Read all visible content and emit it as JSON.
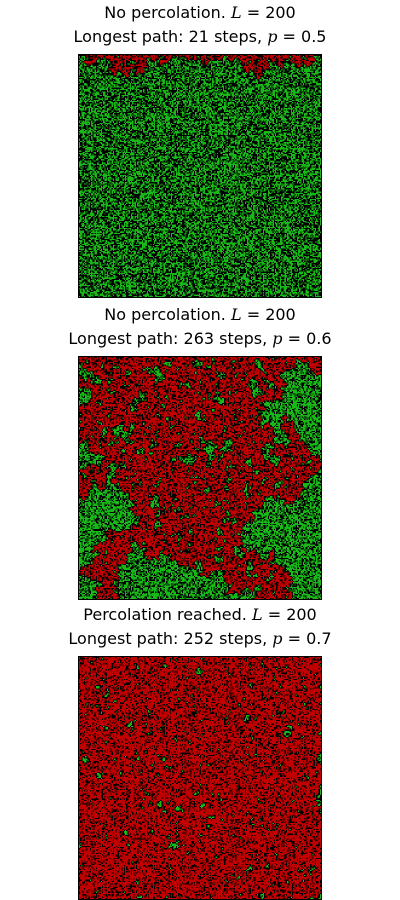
{
  "colors": {
    "open_site": "#18b818",
    "blocked_site": "#000000",
    "percolating_cluster": "#c00000",
    "frame": "#000000",
    "background": "#ffffff"
  },
  "panels": [
    {
      "title_line_1": "No percolation.",
      "size_symbol": "L",
      "size_eq": " = 200",
      "title_line_2": "Longest path: 21 steps,",
      "prob_symbol": "p",
      "prob_eq": " = 0.5",
      "L": 200,
      "p": 0.5,
      "longest_path_steps": 21,
      "percolation_reached": false
    },
    {
      "title_line_1": "No percolation.",
      "size_symbol": "L",
      "size_eq": " = 200",
      "title_line_2": "Longest path: 263 steps,",
      "prob_symbol": "p",
      "prob_eq": " = 0.6",
      "L": 200,
      "p": 0.6,
      "longest_path_steps": 263,
      "percolation_reached": false
    },
    {
      "title_line_1": "Percolation reached.",
      "size_symbol": "L",
      "size_eq": " = 200",
      "title_line_2": "Longest path: 252 steps,",
      "prob_symbol": "p",
      "prob_eq": " = 0.7",
      "L": 200,
      "p": 0.7,
      "longest_path_steps": 252,
      "percolation_reached": true
    }
  ]
}
